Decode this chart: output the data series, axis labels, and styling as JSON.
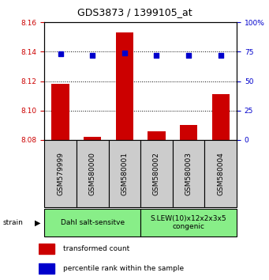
{
  "title": "GDS3873 / 1399105_at",
  "samples": [
    "GSM579999",
    "GSM580000",
    "GSM580001",
    "GSM580002",
    "GSM580003",
    "GSM580004"
  ],
  "bar_values": [
    8.118,
    8.082,
    8.153,
    8.086,
    8.09,
    8.111
  ],
  "percentile_values": [
    73,
    72,
    74,
    72,
    72,
    72
  ],
  "ylim_left": [
    8.08,
    8.16
  ],
  "ylim_right": [
    0,
    100
  ],
  "yticks_left": [
    8.08,
    8.1,
    8.12,
    8.14,
    8.16
  ],
  "yticks_right": [
    0,
    25,
    50,
    75,
    100
  ],
  "ytick_labels_right": [
    "0",
    "25",
    "50",
    "75",
    "100%"
  ],
  "bar_color": "#cc0000",
  "dot_color": "#0000cc",
  "label_color_left": "#cc0000",
  "label_color_right": "#0000cc",
  "groups": [
    {
      "label": "Dahl salt-sensitve",
      "start": 0,
      "end": 3,
      "color": "#88ee88"
    },
    {
      "label": "S.LEW(10)x12x2x3x5\ncongenic",
      "start": 3,
      "end": 6,
      "color": "#88ee88"
    }
  ],
  "strain_label": "strain",
  "legend_red": "transformed count",
  "legend_blue": "percentile rank within the sample",
  "tick_label_fontsize": 6.5,
  "title_fontsize": 9,
  "sample_fontsize": 6.5,
  "group_fontsize": 6.5
}
